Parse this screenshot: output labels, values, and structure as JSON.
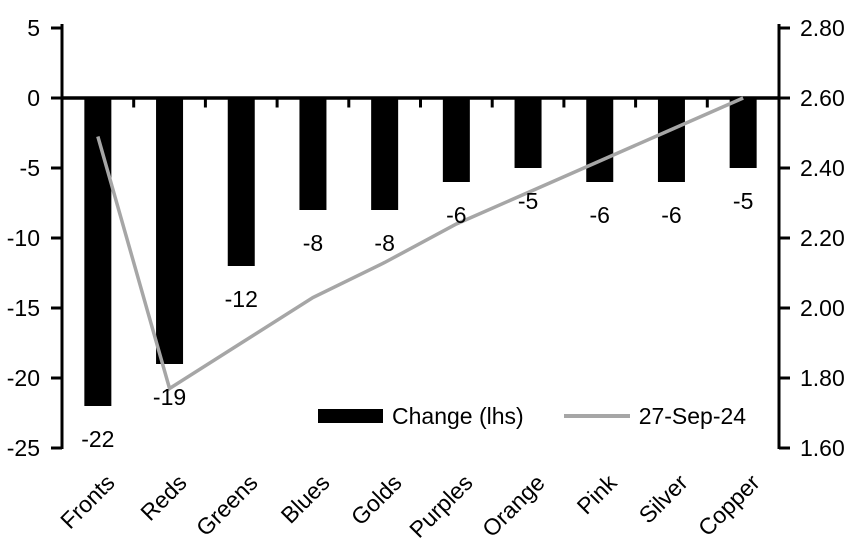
{
  "chart_data": {
    "type": "combo-bar-line",
    "title": "",
    "categories": [
      "Fronts",
      "Reds",
      "Greens",
      "Blues",
      "Golds",
      "Purples",
      "Orange",
      "Pink",
      "Silver",
      "Copper"
    ],
    "series": [
      {
        "name": "Change (lhs)",
        "type": "bar",
        "axis": "left",
        "color": "#000000",
        "values": [
          -22,
          -19,
          -12,
          -8,
          -8,
          -6,
          -5,
          -6,
          -6,
          -5
        ],
        "data_labels": [
          "-22",
          "-19",
          "-12",
          "-8",
          "-8",
          "-6",
          "-5",
          "-6",
          "-6",
          "-5"
        ]
      },
      {
        "name": "27-Sep-24",
        "type": "line",
        "axis": "right",
        "color": "#a6a6a6",
        "values": [
          2.49,
          1.77,
          1.9,
          2.03,
          2.13,
          2.24,
          2.33,
          2.42,
          2.51,
          2.6
        ]
      }
    ],
    "left_axis": {
      "min": -25,
      "max": 5,
      "tick_values": [
        5,
        0,
        -5,
        -10,
        -15,
        -20,
        -25
      ],
      "tick_labels": [
        "5",
        "0",
        "-5",
        "-10",
        "-15",
        "-20",
        "-25"
      ]
    },
    "right_axis": {
      "min": 1.6,
      "max": 2.8,
      "tick_values": [
        2.8,
        2.6,
        2.4,
        2.2,
        2.0,
        1.8,
        1.6
      ],
      "tick_labels": [
        "2.80",
        "2.60",
        "2.40",
        "2.20",
        "2.00",
        "1.80",
        "1.60"
      ]
    },
    "legend": {
      "position": "inside-bottom",
      "items": [
        "Change (lhs)",
        "27-Sep-24"
      ]
    },
    "grid": false,
    "colors": {
      "bar": "#000000",
      "line": "#a6a6a6",
      "axis": "#000000",
      "background": "#ffffff"
    }
  }
}
